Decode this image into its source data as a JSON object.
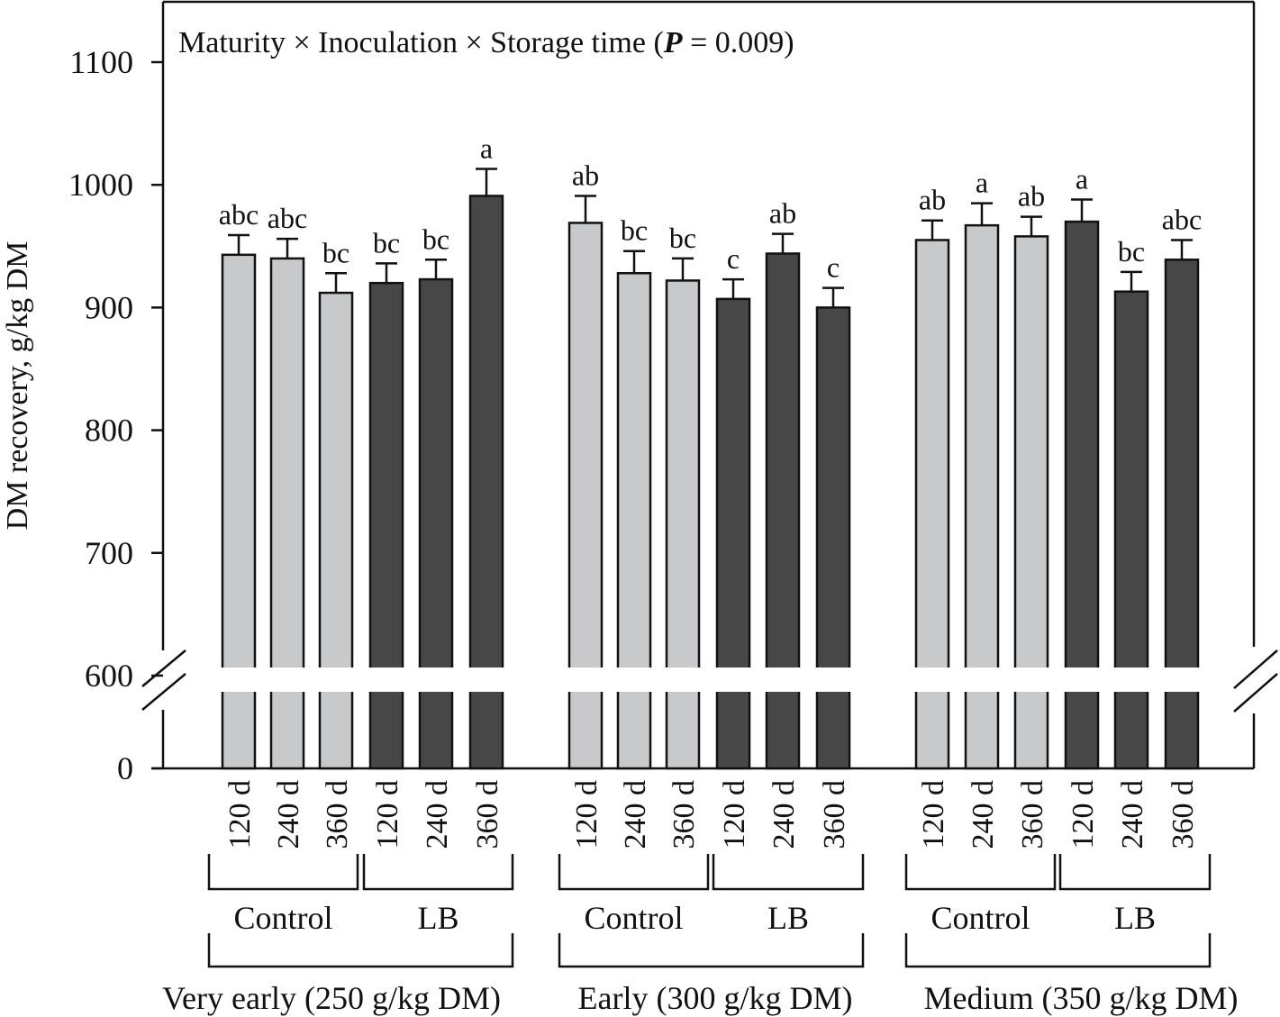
{
  "chart_data": {
    "type": "bar",
    "title_parts": [
      "Maturity × Inoculation × Storage time (",
      "P",
      " = 0.009)"
    ],
    "ylabel": "DM recovery, g/kg DM",
    "ylim": [
      600,
      1150
    ],
    "yticks": [
      "1100",
      "1000",
      "900",
      "800",
      "700",
      "600",
      "0"
    ],
    "y_break": true,
    "colors": {
      "Control": "#c8c9cb",
      "LB": "#474747",
      "edge": "#111111"
    },
    "maturity_groups": [
      {
        "label": "Very early (250 g/kg DM)",
        "inoculations": [
          {
            "label": "Control",
            "bars": [
              {
                "time": "120 d",
                "value": 943,
                "se": 16,
                "sig": "abc"
              },
              {
                "time": "240 d",
                "value": 940,
                "se": 16,
                "sig": "abc"
              },
              {
                "time": "360 d",
                "value": 912,
                "se": 16,
                "sig": "bc"
              }
            ]
          },
          {
            "label": "LB",
            "bars": [
              {
                "time": "120 d",
                "value": 920,
                "se": 16,
                "sig": "bc"
              },
              {
                "time": "240 d",
                "value": 923,
                "se": 16,
                "sig": "bc"
              },
              {
                "time": "360 d",
                "value": 991,
                "se": 22,
                "sig": "a"
              }
            ]
          }
        ]
      },
      {
        "label": "Early (300 g/kg DM)",
        "inoculations": [
          {
            "label": "Control",
            "bars": [
              {
                "time": "120 d",
                "value": 969,
                "se": 22,
                "sig": "ab"
              },
              {
                "time": "240 d",
                "value": 928,
                "se": 18,
                "sig": "bc"
              },
              {
                "time": "360 d",
                "value": 922,
                "se": 18,
                "sig": "bc"
              }
            ]
          },
          {
            "label": "LB",
            "bars": [
              {
                "time": "120 d",
                "value": 907,
                "se": 16,
                "sig": "c"
              },
              {
                "time": "240 d",
                "value": 944,
                "se": 16,
                "sig": "ab"
              },
              {
                "time": "360 d",
                "value": 900,
                "se": 16,
                "sig": "c"
              }
            ]
          }
        ]
      },
      {
        "label": "Medium (350 g/kg DM)",
        "inoculations": [
          {
            "label": "Control",
            "bars": [
              {
                "time": "120 d",
                "value": 955,
                "se": 16,
                "sig": "ab"
              },
              {
                "time": "240 d",
                "value": 967,
                "se": 18,
                "sig": "a"
              },
              {
                "time": "360 d",
                "value": 958,
                "se": 16,
                "sig": "ab"
              }
            ]
          },
          {
            "label": "LB",
            "bars": [
              {
                "time": "120 d",
                "value": 970,
                "se": 18,
                "sig": "a"
              },
              {
                "time": "240 d",
                "value": 913,
                "se": 16,
                "sig": "bc"
              },
              {
                "time": "360 d",
                "value": 939,
                "se": 16,
                "sig": "abc"
              }
            ]
          }
        ]
      }
    ]
  }
}
